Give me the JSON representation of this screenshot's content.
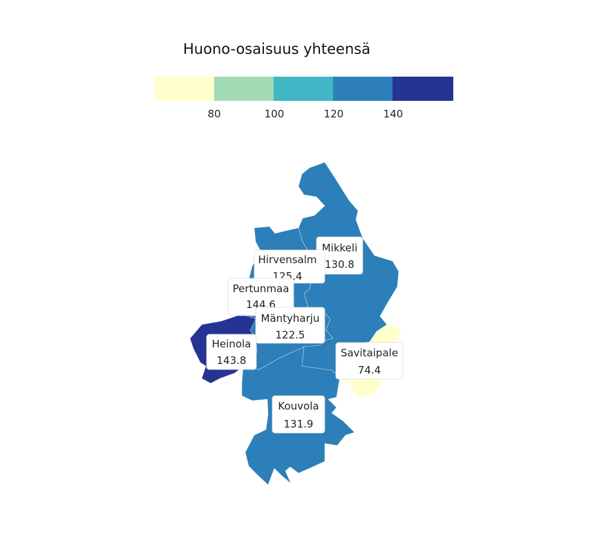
{
  "legend": {
    "title": "Huono-osaisuus yhteensä",
    "colors": [
      "#ffffcc",
      "#a1dab4",
      "#41b6c4",
      "#2c7fb8",
      "#253494"
    ],
    "breaks": [
      "80",
      "100",
      "120",
      "140"
    ]
  },
  "regions": [
    {
      "id": "mikkeli",
      "name": "Mikkeli",
      "value": "130.8",
      "color": "#2c7fb8"
    },
    {
      "id": "hirvensalmi",
      "name": "Hirvensalm",
      "value": "125.4",
      "color": "#2c7fb8"
    },
    {
      "id": "pertunmaa",
      "name": "Pertunmaa",
      "value": "144.6",
      "color": "#253494"
    },
    {
      "id": "mantyharju",
      "name": "Mäntyharju",
      "value": "122.5",
      "color": "#2c7fb8"
    },
    {
      "id": "heinola",
      "name": "Heinola",
      "value": "143.8",
      "color": "#253494"
    },
    {
      "id": "savitaipale",
      "name": "Savitaipale",
      "value": "74.4",
      "color": "#ffffcc"
    },
    {
      "id": "kouvola",
      "name": "Kouvola",
      "value": "131.9",
      "color": "#2c7fb8"
    }
  ]
}
